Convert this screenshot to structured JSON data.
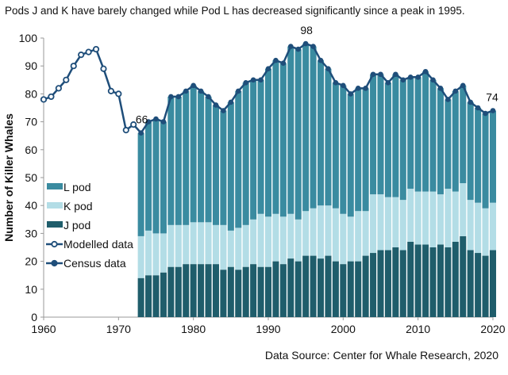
{
  "chart_data": {
    "type": "bar",
    "title": "Pods J and K have barely changed while Pod L has decreased significantly since a peak in 1995.",
    "source": "Data Source: Center for Whale Research, 2020",
    "ylabel": "Number of Killer Whales",
    "xlabel": "",
    "xlim": [
      1960,
      2020
    ],
    "ylim": [
      0,
      100
    ],
    "xticks": [
      1960,
      1970,
      1980,
      1990,
      2000,
      2010,
      2020
    ],
    "yticks": [
      0,
      10,
      20,
      30,
      40,
      50,
      60,
      70,
      80,
      90,
      100
    ],
    "grid": false,
    "legend": "left",
    "colors": {
      "L pod": "#3a8ba0",
      "K pod": "#b3dde6",
      "J pod": "#1f5d6b",
      "line": "#1f4e7a"
    },
    "census_years_start": 1973,
    "series": [
      {
        "name": "J pod",
        "values": [
          14,
          15,
          15,
          16,
          18,
          18,
          19,
          19,
          19,
          19,
          19,
          17,
          18,
          17,
          18,
          19,
          18,
          18,
          20,
          19,
          21,
          20,
          22,
          22,
          21,
          22,
          20,
          19,
          20,
          20,
          22,
          23,
          24,
          24,
          25,
          24,
          27,
          26,
          26,
          25,
          26,
          25,
          27,
          29,
          24,
          23,
          22,
          24
        ]
      },
      {
        "name": "K pod",
        "values": [
          15,
          16,
          15,
          14,
          15,
          15,
          14,
          15,
          15,
          15,
          14,
          16,
          13,
          15,
          15,
          16,
          19,
          18,
          17,
          17,
          16,
          15,
          16,
          17,
          19,
          18,
          19,
          18,
          16,
          18,
          16,
          21,
          20,
          19,
          18,
          18,
          19,
          19,
          19,
          20,
          18,
          21,
          18,
          19,
          18,
          18,
          17,
          17
        ]
      },
      {
        "name": "L pod",
        "values": [
          37,
          39,
          41,
          40,
          46,
          46,
          48,
          49,
          47,
          45,
          43,
          41,
          46,
          49,
          51,
          50,
          48,
          53,
          55,
          55,
          60,
          61,
          60,
          58,
          52,
          49,
          45,
          46,
          44,
          44,
          44,
          43,
          43,
          41,
          44,
          43,
          40,
          41,
          43,
          40,
          38,
          32,
          36,
          35,
          35,
          34,
          34,
          33
        ]
      }
    ],
    "modelled": {
      "name": "Modelled data",
      "x": [
        1960,
        1961,
        1962,
        1963,
        1964,
        1965,
        1966,
        1967,
        1968,
        1969,
        1970,
        1971,
        1972,
        1973
      ],
      "y": [
        78,
        79,
        82,
        85,
        90,
        94,
        95,
        96,
        89,
        81,
        80,
        67,
        69,
        66
      ]
    },
    "census": {
      "name": "Census data",
      "x_start": 1973,
      "y": [
        66,
        70,
        71,
        70,
        79,
        79,
        81,
        83,
        81,
        79,
        76,
        74,
        77,
        81,
        84,
        85,
        85,
        89,
        92,
        91,
        97,
        96,
        98,
        97,
        92,
        89,
        84,
        83,
        80,
        82,
        82,
        87,
        87,
        84,
        87,
        85,
        86,
        86,
        88,
        85,
        82,
        78,
        81,
        83,
        77,
        75,
        73,
        74
      ]
    },
    "annotations": [
      {
        "x": 1973,
        "label": "66"
      },
      {
        "x": 1995,
        "label": "98"
      },
      {
        "x": 2020,
        "label": "74"
      }
    ],
    "legend_entries": [
      "L pod",
      "K pod",
      "J pod",
      "Modelled data",
      "Census data"
    ]
  }
}
